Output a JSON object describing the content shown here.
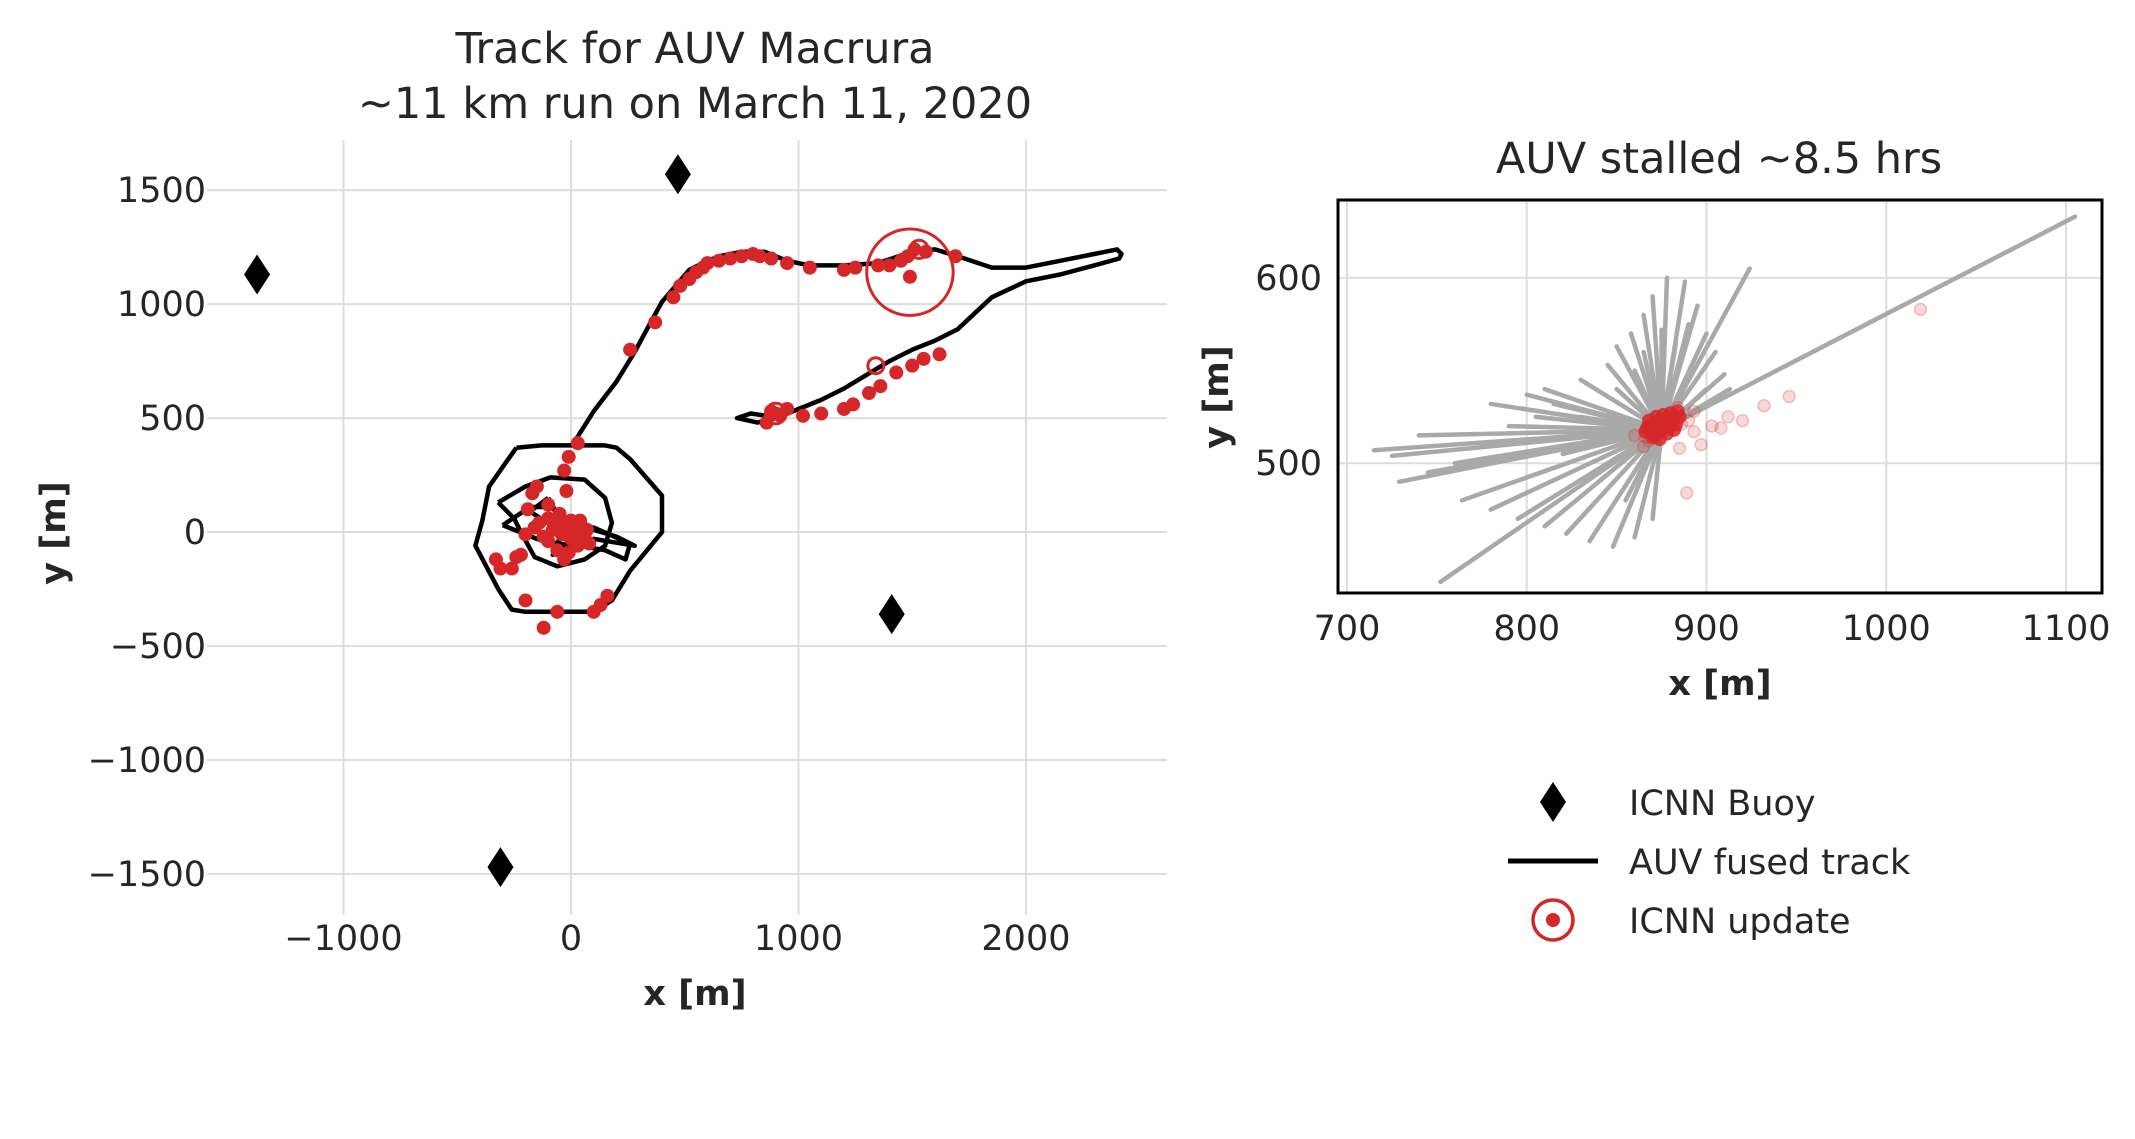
{
  "chart_data": [
    {
      "type": "line",
      "id": "main",
      "title_line1": "Track for AUV Macrura",
      "title_line2": "~11 km run on March 11, 2020",
      "xlabel": "x [m]",
      "ylabel": "y [m]",
      "xlim": [
        -1600,
        2620
      ],
      "ylim": [
        -1680,
        1720
      ],
      "xticks": [
        -1000,
        0,
        1000,
        2000
      ],
      "xtick_labels": [
        "−1000",
        "0",
        "1000",
        "2000"
      ],
      "yticks": [
        -1500,
        -1000,
        -500,
        0,
        500,
        1000,
        1500
      ],
      "ytick_labels": [
        "−1500",
        "−1000",
        "−500",
        "0",
        "500",
        "1000",
        "1500"
      ],
      "grid": true,
      "buoys": [
        [
          -1380,
          1130
        ],
        [
          470,
          1570
        ],
        [
          1410,
          -360
        ],
        [
          -310,
          -1470
        ]
      ],
      "fused_track": [
        [
          5,
          380
        ],
        [
          100,
          530
        ],
        [
          200,
          660
        ],
        [
          280,
          790
        ],
        [
          350,
          920
        ],
        [
          400,
          1010
        ],
        [
          460,
          1080
        ],
        [
          520,
          1150
        ],
        [
          580,
          1180
        ],
        [
          650,
          1210
        ],
        [
          750,
          1230
        ],
        [
          850,
          1230
        ],
        [
          950,
          1190
        ],
        [
          1050,
          1170
        ],
        [
          1200,
          1170
        ],
        [
          1350,
          1180
        ],
        [
          1500,
          1230
        ],
        [
          1600,
          1240
        ],
        [
          1700,
          1210
        ],
        [
          1850,
          1160
        ],
        [
          2000,
          1160
        ],
        [
          2150,
          1190
        ],
        [
          2300,
          1220
        ],
        [
          2400,
          1240
        ],
        [
          2420,
          1220
        ],
        [
          2410,
          1200
        ],
        [
          2300,
          1170
        ],
        [
          2150,
          1130
        ],
        [
          2000,
          1100
        ],
        [
          1850,
          1030
        ],
        [
          1700,
          890
        ],
        [
          1600,
          840
        ],
        [
          1500,
          800
        ],
        [
          1400,
          750
        ],
        [
          1300,
          690
        ],
        [
          1200,
          630
        ],
        [
          1100,
          580
        ],
        [
          1000,
          540
        ],
        [
          900,
          500
        ],
        [
          820,
          480
        ],
        [
          730,
          500
        ],
        [
          790,
          520
        ],
        [
          860,
          510
        ]
      ],
      "hexagon_track": [
        [
          -240,
          370
        ],
        [
          -130,
          380
        ],
        [
          0,
          380
        ],
        [
          150,
          380
        ],
        [
          200,
          370
        ],
        [
          260,
          320
        ],
        [
          400,
          160
        ],
        [
          400,
          0
        ],
        [
          260,
          -170
        ],
        [
          180,
          -300
        ],
        [
          100,
          -350
        ],
        [
          -100,
          -350
        ],
        [
          -200,
          -350
        ],
        [
          -260,
          -340
        ],
        [
          -320,
          -250
        ],
        [
          -420,
          -60
        ],
        [
          -390,
          50
        ],
        [
          -360,
          200
        ],
        [
          -290,
          300
        ],
        [
          -240,
          370
        ]
      ],
      "inner_track": [
        [
          -320,
          130
        ],
        [
          -200,
          200
        ],
        [
          -90,
          240
        ],
        [
          60,
          230
        ],
        [
          150,
          150
        ],
        [
          180,
          40
        ],
        [
          150,
          -60
        ],
        [
          60,
          -120
        ],
        [
          -60,
          -150
        ],
        [
          -160,
          -110
        ],
        [
          -220,
          0
        ],
        [
          -250,
          60
        ],
        [
          -320,
          130
        ]
      ],
      "inner_track_2": [
        [
          -300,
          30
        ],
        [
          -180,
          110
        ],
        [
          -90,
          110
        ],
        [
          -40,
          70
        ],
        [
          0,
          20
        ],
        [
          100,
          20
        ],
        [
          190,
          -20
        ],
        [
          260,
          -50
        ],
        [
          240,
          -120
        ],
        [
          150,
          -80
        ],
        [
          40,
          -60
        ],
        [
          -60,
          -50
        ],
        [
          -150,
          -30
        ],
        [
          -300,
          30
        ]
      ],
      "star_track": [
        [
          -100,
          150
        ],
        [
          -50,
          60
        ],
        [
          0,
          30
        ],
        [
          100,
          10
        ],
        [
          200,
          -20
        ],
        [
          280,
          -60
        ],
        [
          100,
          -30
        ],
        [
          0,
          -50
        ],
        [
          -80,
          -100
        ],
        [
          -40,
          0
        ],
        [
          -180,
          90
        ],
        [
          -100,
          150
        ]
      ],
      "icnn_updates": [
        [
          30,
          390
        ],
        [
          -10,
          330
        ],
        [
          -30,
          270
        ],
        [
          260,
          800
        ],
        [
          370,
          920
        ],
        [
          450,
          1030
        ],
        [
          480,
          1080
        ],
        [
          520,
          1110
        ],
        [
          550,
          1140
        ],
        [
          580,
          1160
        ],
        [
          600,
          1180
        ],
        [
          650,
          1190
        ],
        [
          700,
          1200
        ],
        [
          750,
          1210
        ],
        [
          800,
          1220
        ],
        [
          830,
          1210
        ],
        [
          880,
          1200
        ],
        [
          950,
          1180
        ],
        [
          1050,
          1160
        ],
        [
          1200,
          1150
        ],
        [
          1250,
          1160
        ],
        [
          1350,
          1170
        ],
        [
          1400,
          1170
        ],
        [
          1450,
          1190
        ],
        [
          1480,
          1210
        ],
        [
          1510,
          1240
        ],
        [
          1560,
          1230
        ],
        [
          1690,
          1210
        ],
        [
          1490,
          1120
        ],
        [
          1620,
          780
        ],
        [
          1550,
          760
        ],
        [
          1500,
          730
        ],
        [
          1430,
          700
        ],
        [
          1360,
          640
        ],
        [
          1310,
          610
        ],
        [
          1240,
          560
        ],
        [
          1200,
          540
        ],
        [
          1100,
          520
        ],
        [
          1020,
          510
        ],
        [
          950,
          540
        ],
        [
          900,
          520
        ],
        [
          860,
          480
        ],
        [
          880,
          530
        ],
        [
          920,
          510
        ],
        [
          160,
          -280
        ],
        [
          130,
          -320
        ],
        [
          100,
          -350
        ],
        [
          -120,
          -420
        ],
        [
          -60,
          -350
        ],
        [
          -200,
          -300
        ],
        [
          -330,
          -120
        ],
        [
          -310,
          -160
        ],
        [
          -260,
          -160
        ],
        [
          -220,
          -100
        ],
        [
          -190,
          100
        ],
        [
          -170,
          170
        ],
        [
          -150,
          200
        ],
        [
          -100,
          120
        ],
        [
          -50,
          80
        ],
        [
          0,
          50
        ],
        [
          50,
          20
        ],
        [
          60,
          -20
        ],
        [
          30,
          -60
        ],
        [
          -10,
          -90
        ],
        [
          -60,
          -80
        ],
        [
          -100,
          -40
        ],
        [
          -160,
          20
        ],
        [
          -200,
          -10
        ],
        [
          -140,
          40
        ],
        [
          -80,
          10
        ],
        [
          -20,
          30
        ],
        [
          20,
          -10
        ],
        [
          70,
          10
        ],
        [
          -40,
          -10
        ],
        [
          0,
          -30
        ],
        [
          10,
          10
        ],
        [
          -60,
          40
        ],
        [
          40,
          50
        ],
        [
          -120,
          -20
        ],
        [
          80,
          -50
        ],
        [
          -30,
          -120
        ],
        [
          -20,
          180
        ],
        [
          -100,
          60
        ],
        [
          -240,
          -110
        ]
      ],
      "icnn_update_rings": [
        {
          "x": 1490,
          "y": 1140,
          "r_m": 190
        },
        {
          "x": 1530,
          "y": 1240,
          "r_m": 40
        },
        {
          "x": 1340,
          "y": 730,
          "r_m": 35
        },
        {
          "x": 900,
          "y": 520,
          "r_m": 45
        },
        {
          "x": 20,
          "y": 20,
          "r_m": 35
        }
      ],
      "annotation": "red circle marks stall location"
    },
    {
      "type": "line",
      "id": "inset",
      "title": "AUV stalled ~8.5 hrs",
      "xlabel": "x [m]",
      "ylabel": "y [m]",
      "xlim": [
        695,
        1120
      ],
      "ylim": [
        430,
        642
      ],
      "xticks": [
        700,
        800,
        900,
        1000,
        1100
      ],
      "xtick_labels": [
        "700",
        "800",
        "900",
        "1000",
        "1100"
      ],
      "yticks": [
        500,
        600
      ],
      "ytick_labels": [
        "500",
        "600"
      ],
      "grid": true,
      "stall_rays_center": [
        875,
        518
      ],
      "stall_ray_ends": [
        [
          715,
          507
        ],
        [
          729,
          490
        ],
        [
          745,
          495
        ],
        [
          752,
          436
        ],
        [
          764,
          480
        ],
        [
          780,
          475
        ],
        [
          795,
          470
        ],
        [
          810,
          466
        ],
        [
          822,
          462
        ],
        [
          835,
          458
        ],
        [
          848,
          455
        ],
        [
          860,
          460
        ],
        [
          870,
          470
        ],
        [
          760,
          500
        ],
        [
          775,
          510
        ],
        [
          790,
          520
        ],
        [
          805,
          525
        ],
        [
          815,
          532
        ],
        [
          780,
          532
        ],
        [
          800,
          537
        ],
        [
          810,
          540
        ],
        [
          830,
          545
        ],
        [
          845,
          553
        ],
        [
          850,
          563
        ],
        [
          858,
          570
        ],
        [
          865,
          580
        ],
        [
          870,
          590
        ],
        [
          875,
          572
        ],
        [
          878,
          600
        ],
        [
          883,
          565
        ],
        [
          888,
          598
        ],
        [
          890,
          575
        ],
        [
          895,
          585
        ],
        [
          900,
          570
        ],
        [
          905,
          560
        ],
        [
          910,
          548
        ],
        [
          913,
          540
        ],
        [
          924,
          605
        ],
        [
          740,
          515
        ],
        [
          725,
          504
        ],
        [
          770,
          498
        ],
        [
          820,
          505
        ],
        [
          840,
          490
        ],
        [
          855,
          480
        ],
        [
          830,
          525
        ],
        [
          850,
          540
        ],
        [
          860,
          550
        ],
        [
          865,
          560
        ],
        [
          890,
          530
        ],
        [
          900,
          540
        ],
        [
          1105,
          633
        ]
      ],
      "icnn_updates_faint": [
        [
          868,
          512
        ],
        [
          872,
          516
        ],
        [
          875,
          520
        ],
        [
          878,
          518
        ],
        [
          880,
          522
        ],
        [
          883,
          520
        ],
        [
          870,
          518
        ],
        [
          866,
          514
        ],
        [
          874,
          524
        ],
        [
          881,
          526
        ],
        [
          886,
          521
        ],
        [
          890,
          523
        ],
        [
          893,
          517
        ],
        [
          897,
          510
        ],
        [
          903,
          520
        ],
        [
          908,
          519
        ],
        [
          912,
          525
        ],
        [
          920,
          523
        ],
        [
          932,
          531
        ],
        [
          946,
          536
        ],
        [
          889,
          484
        ],
        [
          1019,
          583
        ],
        [
          884,
          530
        ],
        [
          860,
          515
        ],
        [
          885,
          508
        ],
        [
          865,
          509
        ],
        [
          893,
          528
        ]
      ],
      "icnn_updates_solid": [
        [
          866,
          517
        ],
        [
          869,
          520
        ],
        [
          871,
          515
        ],
        [
          873,
          521
        ],
        [
          875,
          518
        ],
        [
          877,
          522
        ],
        [
          879,
          519
        ],
        [
          881,
          524
        ],
        [
          883,
          521
        ],
        [
          885,
          525
        ],
        [
          868,
          523
        ],
        [
          872,
          525
        ],
        [
          876,
          526
        ],
        [
          880,
          527
        ],
        [
          884,
          528
        ],
        [
          870,
          514
        ],
        [
          874,
          513
        ],
        [
          878,
          516
        ],
        [
          882,
          518
        ],
        [
          867,
          519
        ]
      ]
    }
  ],
  "legend": {
    "placement": "bottom-right",
    "items": [
      {
        "label": "ICNN Buoy",
        "marker": "diamond"
      },
      {
        "label": "AUV fused track",
        "marker": "line"
      },
      {
        "label": "ICNN update",
        "marker": "target"
      }
    ]
  },
  "colors": {
    "track": "#000000",
    "icnn": "#d62728",
    "buoy": "#000000",
    "stall_rays": "#a9a9a9",
    "grid": "#dddddd",
    "text": "#262626"
  }
}
